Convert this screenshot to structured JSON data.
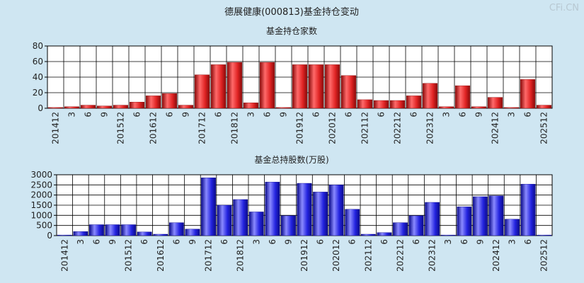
{
  "page": {
    "title": "德展健康(000813)基金持仓变动",
    "watermark": "CFi.CN"
  },
  "chart_data": [
    {
      "type": "bar",
      "title": "基金持仓家数",
      "ylim": [
        0,
        80
      ],
      "yticks": [
        0,
        20,
        40,
        60,
        80
      ],
      "grid": true,
      "color_top": "#ff6a6a",
      "color_mid": "#e02424",
      "color_dark": "#8a0a0a",
      "categories": [
        "201412",
        "3",
        "6",
        "9",
        "201512",
        "6",
        "201612",
        "6",
        "9",
        "201712",
        "6",
        "201812",
        "3",
        "6",
        "9",
        "201912",
        "6",
        "202012",
        "6",
        "202112",
        "6",
        "202212",
        "6",
        "202312",
        "3",
        "6",
        "9",
        "202412",
        "3",
        "6",
        "202512"
      ],
      "category_labels": [
        "201412",
        "3",
        "6",
        "9",
        "201512",
        "6",
        "201612",
        "6",
        "9",
        "201712",
        "6",
        "201812",
        "3",
        "6",
        "9",
        "201912",
        "6",
        "202012",
        "6",
        "202112",
        "6",
        "202212",
        "6",
        "202312",
        "3",
        "6",
        "9",
        "202412",
        "3",
        "6",
        "202512"
      ],
      "values": [
        1,
        2,
        4,
        3,
        4,
        8,
        16,
        19,
        4,
        43,
        56,
        59,
        7,
        59,
        1,
        56,
        56,
        56,
        42,
        11,
        10,
        10,
        16,
        32,
        2,
        29,
        2,
        14,
        1,
        37,
        4
      ]
    },
    {
      "type": "bar",
      "title": "基金总持股数(万股)",
      "ylim": [
        0,
        3000
      ],
      "yticks": [
        0,
        500,
        1000,
        1500,
        2000,
        2500,
        3000
      ],
      "grid": true,
      "color_top": "#8a8aff",
      "color_mid": "#2424e0",
      "color_dark": "#0a0a8a",
      "categories": [
        "201412",
        "3",
        "6",
        "9",
        "201512",
        "6",
        "201612",
        "6",
        "9",
        "201712",
        "6",
        "201812",
        "3",
        "6",
        "9",
        "201912",
        "6",
        "202012",
        "6",
        "202112",
        "6",
        "202212",
        "6",
        "202312",
        "3",
        "6",
        "9",
        "202412",
        "3",
        "6",
        "202512"
      ],
      "category_labels": [
        "201412",
        "3",
        "6",
        "9",
        "201512",
        "6",
        "201612",
        "6",
        "9",
        "201712",
        "6",
        "201812",
        "3",
        "6",
        "9",
        "201912",
        "6",
        "202012",
        "6",
        "202112",
        "6",
        "202212",
        "6",
        "202312",
        "3",
        "6",
        "9",
        "202412",
        "3",
        "6",
        "202512"
      ],
      "values": [
        30,
        200,
        540,
        540,
        540,
        180,
        70,
        640,
        320,
        2850,
        1500,
        1780,
        1170,
        2640,
        980,
        2580,
        2150,
        2500,
        1300,
        70,
        150,
        640,
        980,
        1640,
        30,
        1420,
        1920,
        1960,
        810,
        2540,
        30
      ]
    }
  ]
}
